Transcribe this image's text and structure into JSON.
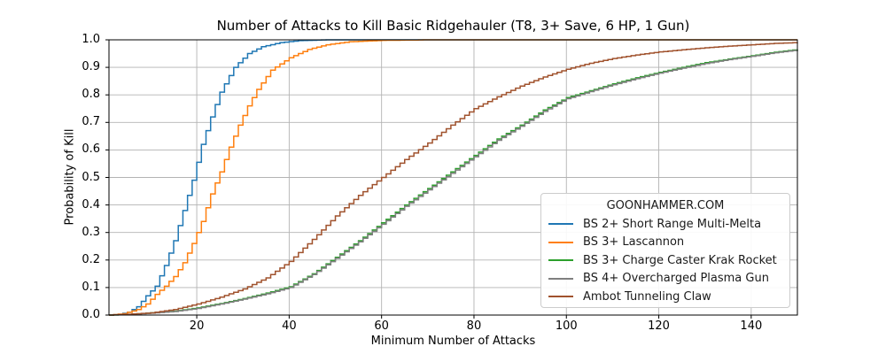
{
  "figure": {
    "title": "Number of Attacks to Kill Basic Ridgehauler (T8, 3+ Save, 6 HP, 1 Gun)",
    "xlabel": "Minimum Number of Attacks",
    "ylabel": "Probability of Kill"
  },
  "legend": {
    "title": "GOONHAMMER.COM",
    "position": "lower right"
  },
  "colors": {
    "grid": "#b3b3b3",
    "spine": "#000000",
    "legend_border": "#cccccc"
  },
  "chart_data": {
    "type": "line",
    "subtype": "step-cdf",
    "title": "Number of Attacks to Kill Basic Ridgehauler (T8, 3+ Save, 6 HP, 1 Gun)",
    "xlabel": "Minimum Number of Attacks",
    "ylabel": "Probability of Kill",
    "xlim": [
      1,
      150
    ],
    "ylim": [
      0.0,
      1.0
    ],
    "xticks": [
      20,
      40,
      60,
      80,
      100,
      120,
      140
    ],
    "yticks": [
      0.0,
      0.1,
      0.2,
      0.3,
      0.4,
      0.5,
      0.6,
      0.7,
      0.8,
      0.9,
      1.0
    ],
    "grid": true,
    "legend_title": "GOONHAMMER.COM",
    "legend_position": "lower right",
    "series": [
      {
        "name": "BS 2+ Short Range Multi-Melta",
        "color": "#1f77b4",
        "points": [
          [
            1,
            0
          ],
          [
            3,
            0.003
          ],
          [
            5,
            0.01
          ],
          [
            7,
            0.03
          ],
          [
            9,
            0.07
          ],
          [
            11,
            0.105
          ],
          [
            13,
            0.18
          ],
          [
            15,
            0.27
          ],
          [
            17,
            0.38
          ],
          [
            19,
            0.49
          ],
          [
            21,
            0.62
          ],
          [
            23,
            0.72
          ],
          [
            25,
            0.81
          ],
          [
            28,
            0.9
          ],
          [
            31,
            0.95
          ],
          [
            34,
            0.975
          ],
          [
            38,
            0.99
          ],
          [
            42,
            0.997
          ],
          [
            48,
            1.0
          ],
          [
            150,
            1.0
          ]
        ]
      },
      {
        "name": "BS 3+ Lascannon",
        "color": "#ff7f0e",
        "points": [
          [
            1,
            0
          ],
          [
            4,
            0.005
          ],
          [
            7,
            0.02
          ],
          [
            9,
            0.04
          ],
          [
            11,
            0.075
          ],
          [
            13,
            0.105
          ],
          [
            15,
            0.14
          ],
          [
            17,
            0.19
          ],
          [
            19,
            0.26
          ],
          [
            21,
            0.34
          ],
          [
            23,
            0.44
          ],
          [
            25,
            0.52
          ],
          [
            27,
            0.61
          ],
          [
            29,
            0.69
          ],
          [
            31,
            0.76
          ],
          [
            33,
            0.82
          ],
          [
            36,
            0.89
          ],
          [
            40,
            0.935
          ],
          [
            44,
            0.965
          ],
          [
            48,
            0.982
          ],
          [
            53,
            0.993
          ],
          [
            60,
            0.998
          ],
          [
            70,
            1.0
          ],
          [
            150,
            1.0
          ]
        ]
      },
      {
        "name": "BS 3+ Charge Caster Krak Rocket",
        "color": "#2ca02c",
        "points": [
          [
            1,
            0
          ],
          [
            5,
            0.002
          ],
          [
            10,
            0.008
          ],
          [
            15,
            0.014
          ],
          [
            20,
            0.026
          ],
          [
            25,
            0.042
          ],
          [
            30,
            0.06
          ],
          [
            35,
            0.08
          ],
          [
            40,
            0.103
          ],
          [
            45,
            0.15
          ],
          [
            50,
            0.21
          ],
          [
            55,
            0.27
          ],
          [
            60,
            0.335
          ],
          [
            65,
            0.4
          ],
          [
            70,
            0.46
          ],
          [
            75,
            0.52
          ],
          [
            80,
            0.58
          ],
          [
            85,
            0.64
          ],
          [
            90,
            0.69
          ],
          [
            95,
            0.745
          ],
          [
            100,
            0.79
          ],
          [
            105,
            0.815
          ],
          [
            110,
            0.84
          ],
          [
            115,
            0.862
          ],
          [
            120,
            0.882
          ],
          [
            125,
            0.9
          ],
          [
            130,
            0.917
          ],
          [
            135,
            0.93
          ],
          [
            140,
            0.942
          ],
          [
            145,
            0.955
          ],
          [
            150,
            0.965
          ]
        ]
      },
      {
        "name": "BS 4+ Overcharged Plasma Gun",
        "color": "#7f7f7f",
        "points": [
          [
            1,
            0
          ],
          [
            5,
            0.002
          ],
          [
            10,
            0.007
          ],
          [
            15,
            0.013
          ],
          [
            20,
            0.024
          ],
          [
            25,
            0.04
          ],
          [
            30,
            0.058
          ],
          [
            35,
            0.077
          ],
          [
            40,
            0.1
          ],
          [
            45,
            0.147
          ],
          [
            50,
            0.206
          ],
          [
            55,
            0.266
          ],
          [
            60,
            0.33
          ],
          [
            65,
            0.395
          ],
          [
            70,
            0.455
          ],
          [
            75,
            0.515
          ],
          [
            80,
            0.575
          ],
          [
            85,
            0.635
          ],
          [
            90,
            0.686
          ],
          [
            95,
            0.74
          ],
          [
            100,
            0.786
          ],
          [
            105,
            0.812
          ],
          [
            110,
            0.837
          ],
          [
            115,
            0.859
          ],
          [
            120,
            0.879
          ],
          [
            125,
            0.897
          ],
          [
            130,
            0.914
          ],
          [
            135,
            0.928
          ],
          [
            140,
            0.94
          ],
          [
            145,
            0.953
          ],
          [
            150,
            0.963
          ]
        ]
      },
      {
        "name": "Ambot Tunneling Claw",
        "color": "#a0522d",
        "points": [
          [
            1,
            0
          ],
          [
            5,
            0.003
          ],
          [
            10,
            0.008
          ],
          [
            15,
            0.02
          ],
          [
            20,
            0.04
          ],
          [
            25,
            0.065
          ],
          [
            30,
            0.095
          ],
          [
            35,
            0.135
          ],
          [
            40,
            0.195
          ],
          [
            45,
            0.275
          ],
          [
            50,
            0.36
          ],
          [
            55,
            0.435
          ],
          [
            60,
            0.5
          ],
          [
            65,
            0.565
          ],
          [
            70,
            0.625
          ],
          [
            75,
            0.69
          ],
          [
            80,
            0.75
          ],
          [
            85,
            0.793
          ],
          [
            90,
            0.832
          ],
          [
            95,
            0.865
          ],
          [
            100,
            0.893
          ],
          [
            105,
            0.915
          ],
          [
            110,
            0.932
          ],
          [
            115,
            0.945
          ],
          [
            120,
            0.956
          ],
          [
            125,
            0.964
          ],
          [
            130,
            0.971
          ],
          [
            135,
            0.977
          ],
          [
            140,
            0.982
          ],
          [
            145,
            0.987
          ],
          [
            150,
            0.99
          ]
        ]
      }
    ]
  }
}
